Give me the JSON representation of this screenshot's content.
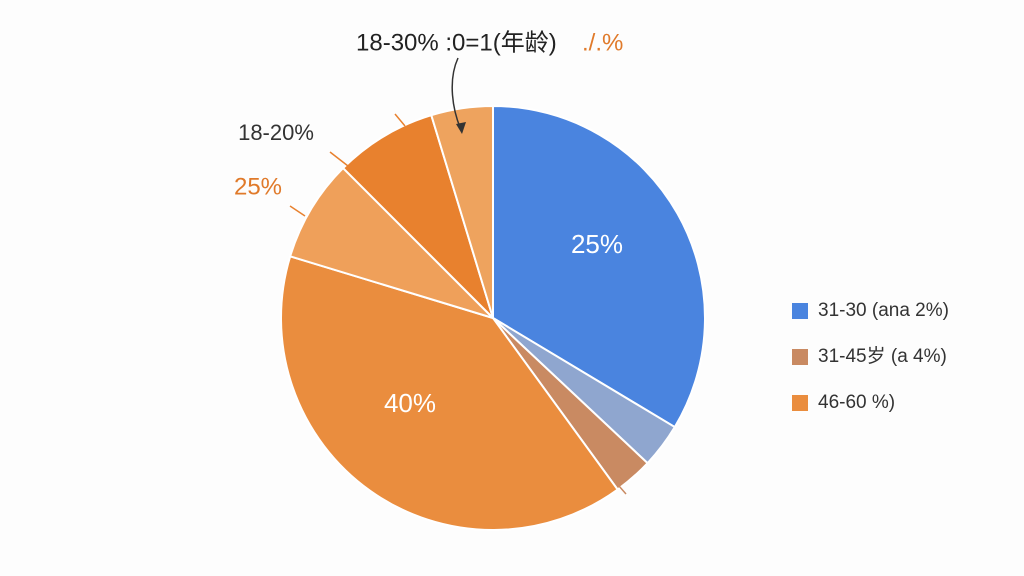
{
  "chart_data": {
    "type": "pie",
    "slices": [
      {
        "color": "#4a84df",
        "value": 33.6
      },
      {
        "color": "#8fa6cf",
        "value": 3.4
      },
      {
        "color": "#c98a62",
        "value": 3
      },
      {
        "color": "#ea8d3e",
        "value": 39.7
      },
      {
        "color": "#efa05a",
        "value": 7.8
      },
      {
        "color": "#e8812e",
        "value": 7.8
      },
      {
        "color": "#eea35e",
        "value": 4.7
      }
    ],
    "annotations": [
      "25%",
      "40%",
      "25%",
      "18-20%",
      "18-30% :0=1(年龄)",
      "./.%"
    ],
    "legend": [
      {
        "name": "31-30 (ana 2%)",
        "color": "#4a84df"
      },
      {
        "name": "31-45岁 (a 4%)",
        "color": "#c98a62"
      },
      {
        "name": "46-60 %)",
        "color": "#ea8d3e"
      }
    ]
  }
}
